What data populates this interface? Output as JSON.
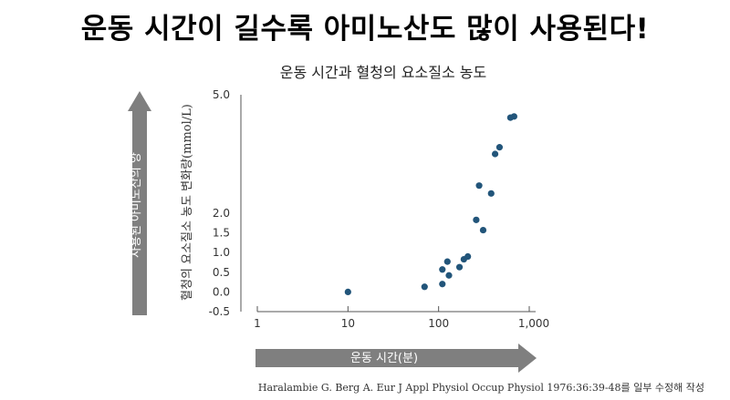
{
  "headline": "운동 시간이 길수록 아미노산도 많이 사용된다!",
  "citation": "Haralambie G. Berg A. Eur J Appl Physiol Occup Physiol 1976:36:39-48를 일부 수정해 작성",
  "colors": {
    "point": "#22557a",
    "arrow": "#7f7f7f",
    "axis": "#555555",
    "arrow_text": "#ffffff"
  },
  "chart_data": {
    "type": "scatter",
    "title": "운동 시간과 혈청의 요소질소 농도",
    "xlabel": "운동 시간(분)",
    "ylabel": "혈청의 요소질소 농도 변화량(mmol/L)",
    "side_label": "사용된 아미노산의 양",
    "x_scale": "log",
    "xlim": [
      1,
      1000
    ],
    "ylim": [
      -0.5,
      5.0
    ],
    "y_tick_labels": [
      "5.0",
      "2.0",
      "1.5",
      "1.0",
      "0.5",
      "0.0",
      "-0.5"
    ],
    "x_tick_labels": [
      "1",
      "10",
      "100",
      "1,000"
    ],
    "grid": false,
    "points": [
      {
        "x": 10,
        "y": 0.0
      },
      {
        "x": 70,
        "y": 0.13
      },
      {
        "x": 110,
        "y": 0.2
      },
      {
        "x": 110,
        "y": 0.57
      },
      {
        "x": 125,
        "y": 0.77
      },
      {
        "x": 130,
        "y": 0.42
      },
      {
        "x": 170,
        "y": 0.63
      },
      {
        "x": 190,
        "y": 0.83
      },
      {
        "x": 210,
        "y": 0.9
      },
      {
        "x": 260,
        "y": 1.83
      },
      {
        "x": 280,
        "y": 2.7
      },
      {
        "x": 310,
        "y": 1.57
      },
      {
        "x": 380,
        "y": 2.5
      },
      {
        "x": 420,
        "y": 3.5
      },
      {
        "x": 470,
        "y": 3.67
      },
      {
        "x": 620,
        "y": 4.42
      },
      {
        "x": 680,
        "y": 4.45
      }
    ]
  }
}
